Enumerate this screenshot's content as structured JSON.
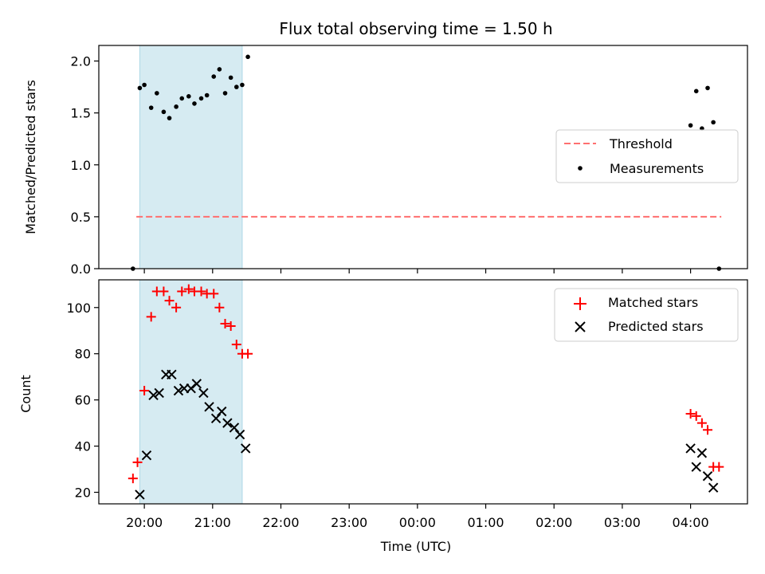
{
  "title": "Flux total observing time = 1.50 h",
  "chart_data": [
    {
      "type": "scatter",
      "ylabel": "Matched/Predicted stars",
      "xlim": [
        "19:20",
        "04:50"
      ],
      "ylim": [
        0,
        2.15
      ],
      "yticks": [
        "0.0",
        "0.5",
        "1.0",
        "1.5",
        "2.0"
      ],
      "highlight_span": {
        "from": "19:56",
        "to": "21:26",
        "color": "#add8e6"
      },
      "threshold": {
        "name": "Threshold",
        "value": 0.5,
        "from": "19:53",
        "to": "04:27",
        "color": "#ff6f6f",
        "style": "dashed"
      },
      "series": [
        {
          "name": "Measurements",
          "color": "#000000",
          "marker": "dot",
          "points": [
            [
              "19:50",
              0.0
            ],
            [
              "19:56",
              1.74
            ],
            [
              "20:00",
              1.77
            ],
            [
              "20:06",
              1.55
            ],
            [
              "20:11",
              1.69
            ],
            [
              "20:17",
              1.51
            ],
            [
              "20:22",
              1.45
            ],
            [
              "20:28",
              1.56
            ],
            [
              "20:33",
              1.64
            ],
            [
              "20:39",
              1.66
            ],
            [
              "20:44",
              1.59
            ],
            [
              "20:50",
              1.64
            ],
            [
              "20:55",
              1.67
            ],
            [
              "21:01",
              1.85
            ],
            [
              "21:06",
              1.92
            ],
            [
              "21:11",
              1.69
            ],
            [
              "21:16",
              1.84
            ],
            [
              "21:21",
              1.75
            ],
            [
              "21:26",
              1.77
            ],
            [
              "21:31",
              2.04
            ],
            [
              "04:00",
              1.38
            ],
            [
              "04:05",
              1.71
            ],
            [
              "04:10",
              1.35
            ],
            [
              "04:15",
              1.74
            ],
            [
              "04:20",
              1.41
            ],
            [
              "04:25",
              0.0
            ]
          ]
        }
      ]
    },
    {
      "type": "scatter",
      "xlabel": "Time (UTC)",
      "ylabel": "Count",
      "xlim": [
        "19:20",
        "04:50"
      ],
      "ylim": [
        15,
        112
      ],
      "yticks": [
        "20",
        "40",
        "60",
        "80",
        "100"
      ],
      "xticks": [
        "20:00",
        "21:00",
        "22:00",
        "23:00",
        "00:00",
        "01:00",
        "02:00",
        "03:00",
        "04:00"
      ],
      "highlight_span": {
        "from": "19:56",
        "to": "21:26",
        "color": "#add8e6"
      },
      "series": [
        {
          "name": "Matched stars",
          "color": "#ff0000",
          "marker": "plus",
          "points": [
            [
              "19:50",
              26
            ],
            [
              "19:54",
              33
            ],
            [
              "20:00",
              64
            ],
            [
              "20:06",
              96
            ],
            [
              "20:11",
              107
            ],
            [
              "20:17",
              107
            ],
            [
              "20:22",
              103
            ],
            [
              "20:28",
              100
            ],
            [
              "20:33",
              107
            ],
            [
              "20:39",
              108
            ],
            [
              "20:44",
              107
            ],
            [
              "20:50",
              107
            ],
            [
              "20:55",
              106
            ],
            [
              "21:01",
              106
            ],
            [
              "21:06",
              100
            ],
            [
              "21:11",
              93
            ],
            [
              "21:16",
              92
            ],
            [
              "21:21",
              84
            ],
            [
              "21:26",
              80
            ],
            [
              "21:31",
              80
            ],
            [
              "04:00",
              54
            ],
            [
              "04:05",
              53
            ],
            [
              "04:10",
              50
            ],
            [
              "04:15",
              47
            ],
            [
              "04:20",
              31
            ],
            [
              "04:25",
              31
            ]
          ]
        },
        {
          "name": "Predicted stars",
          "color": "#000000",
          "marker": "x",
          "points": [
            [
              "19:56",
              19
            ],
            [
              "20:02",
              36
            ],
            [
              "20:08",
              62
            ],
            [
              "20:13",
              63
            ],
            [
              "20:19",
              71
            ],
            [
              "20:24",
              71
            ],
            [
              "20:30",
              64
            ],
            [
              "20:35",
              65
            ],
            [
              "20:41",
              65
            ],
            [
              "20:46",
              67
            ],
            [
              "20:52",
              63
            ],
            [
              "20:57",
              57
            ],
            [
              "21:03",
              52
            ],
            [
              "21:08",
              55
            ],
            [
              "21:13",
              50
            ],
            [
              "21:19",
              48
            ],
            [
              "21:24",
              45
            ],
            [
              "21:29",
              39
            ],
            [
              "04:00",
              39
            ],
            [
              "04:05",
              31
            ],
            [
              "04:10",
              37
            ],
            [
              "04:15",
              27
            ],
            [
              "04:20",
              22
            ]
          ]
        }
      ]
    }
  ]
}
